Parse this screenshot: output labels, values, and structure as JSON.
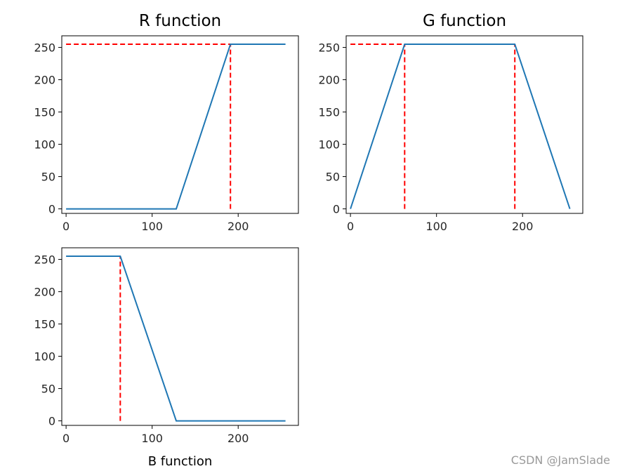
{
  "watermark": "CSDN @JamSlade",
  "chart_data": [
    {
      "type": "line",
      "title": "R function",
      "xlabel": "",
      "xlim": [
        -5,
        270
      ],
      "ylim": [
        -7,
        268
      ],
      "xticks": [
        0,
        100,
        200
      ],
      "yticks": [
        0,
        50,
        100,
        150,
        200,
        250
      ],
      "series": [
        {
          "x": [
            0,
            128,
            191,
            255
          ],
          "y": [
            0,
            0,
            255,
            255
          ],
          "color": "#1f77b4"
        }
      ],
      "guides": [
        {
          "x": [
            0,
            191
          ],
          "y": [
            255,
            255
          ],
          "color": "#ff0000",
          "style": "dashed"
        },
        {
          "x": [
            191,
            191
          ],
          "y": [
            0,
            255
          ],
          "color": "#ff0000",
          "style": "dashed"
        }
      ]
    },
    {
      "type": "line",
      "title": "G function",
      "xlabel": "",
      "xlim": [
        -5,
        270
      ],
      "ylim": [
        -7,
        268
      ],
      "xticks": [
        0,
        100,
        200
      ],
      "yticks": [
        0,
        50,
        100,
        150,
        200,
        250
      ],
      "series": [
        {
          "x": [
            0,
            63,
            191,
            255
          ],
          "y": [
            0,
            255,
            255,
            0
          ],
          "color": "#1f77b4"
        }
      ],
      "guides": [
        {
          "x": [
            0,
            63
          ],
          "y": [
            255,
            255
          ],
          "color": "#ff0000",
          "style": "dashed"
        },
        {
          "x": [
            63,
            63
          ],
          "y": [
            0,
            255
          ],
          "color": "#ff0000",
          "style": "dashed"
        },
        {
          "x": [
            191,
            191
          ],
          "y": [
            0,
            255
          ],
          "color": "#ff0000",
          "style": "dashed"
        }
      ]
    },
    {
      "type": "line",
      "title": "",
      "xlabel": "B function",
      "xlim": [
        -5,
        270
      ],
      "ylim": [
        -7,
        268
      ],
      "xticks": [
        0,
        100,
        200
      ],
      "yticks": [
        0,
        50,
        100,
        150,
        200,
        250
      ],
      "series": [
        {
          "x": [
            0,
            63,
            128,
            255
          ],
          "y": [
            255,
            255,
            0,
            0
          ],
          "color": "#1f77b4"
        }
      ],
      "guides": [
        {
          "x": [
            63,
            63
          ],
          "y": [
            0,
            255
          ],
          "color": "#ff0000",
          "style": "dashed"
        }
      ]
    }
  ]
}
